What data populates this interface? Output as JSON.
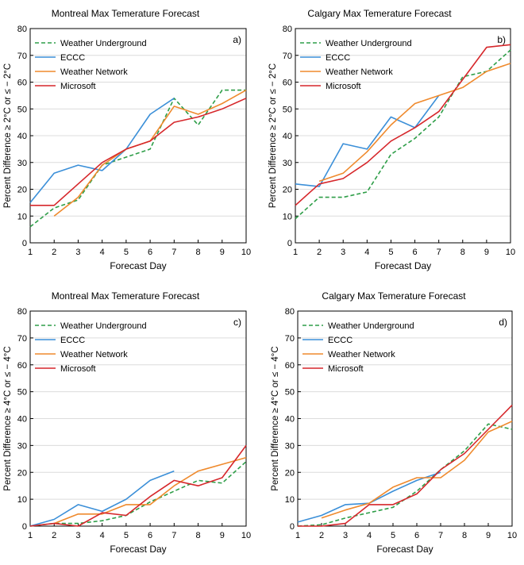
{
  "chart_data": [
    {
      "type": "line",
      "title": "Montreal Max Temerature Forecast",
      "panel_label": "a)",
      "xlabel": "Forecast Day",
      "ylabel": "Percent Difference  ≥ 2°C  or ≤ − 2°C",
      "xlim": [
        1,
        10
      ],
      "ylim": [
        0,
        80
      ],
      "xticks": [
        1,
        2,
        3,
        4,
        5,
        6,
        7,
        8,
        9,
        10
      ],
      "yticks": [
        0,
        10,
        20,
        30,
        40,
        50,
        60,
        70,
        80
      ],
      "grid": true,
      "legend_position": "top-left",
      "series": [
        {
          "name": "Weather Underground",
          "color": "#2e9e48",
          "dashed": true,
          "x": [
            1,
            2,
            3,
            4,
            5,
            6,
            7,
            8,
            9,
            10
          ],
          "y": [
            6,
            13,
            16,
            29,
            32,
            35,
            54,
            44,
            57,
            57
          ]
        },
        {
          "name": "ECCC",
          "color": "#3b8fd8",
          "dashed": false,
          "x": [
            1,
            2,
            3,
            4,
            5,
            6,
            7
          ],
          "y": [
            15,
            26,
            29,
            27,
            35,
            48,
            54
          ]
        },
        {
          "name": "Weather Network",
          "color": "#ef8a2d",
          "dashed": false,
          "x": [
            2,
            3,
            4,
            5,
            6,
            7,
            8,
            9,
            10
          ],
          "y": [
            10,
            17,
            29,
            35,
            38,
            51,
            48,
            52,
            57
          ]
        },
        {
          "name": "Microsoft",
          "color": "#d6272b",
          "dashed": false,
          "x": [
            1,
            2,
            3,
            4,
            5,
            6,
            7,
            8,
            9,
            10
          ],
          "y": [
            14,
            14,
            22,
            30,
            35,
            38,
            45,
            47,
            50,
            54
          ]
        }
      ]
    },
    {
      "type": "line",
      "title": "Calgary Max Temerature Forecast",
      "panel_label": "b)",
      "xlabel": "Forecast Day",
      "ylabel": "Percent Difference  ≥ 2°C  or ≤ − 2°C",
      "xlim": [
        1,
        10
      ],
      "ylim": [
        0,
        80
      ],
      "xticks": [
        1,
        2,
        3,
        4,
        5,
        6,
        7,
        8,
        9,
        10
      ],
      "yticks": [
        0,
        10,
        20,
        30,
        40,
        50,
        60,
        70,
        80
      ],
      "grid": true,
      "legend_position": "top-left",
      "series": [
        {
          "name": "Weather Underground",
          "color": "#2e9e48",
          "dashed": true,
          "x": [
            1,
            2,
            3,
            4,
            5,
            6,
            7,
            8,
            9,
            10
          ],
          "y": [
            9,
            17,
            17,
            19,
            33,
            39,
            47,
            62,
            64,
            72
          ]
        },
        {
          "name": "ECCC",
          "color": "#3b8fd8",
          "dashed": false,
          "x": [
            1,
            2,
            3,
            4,
            5,
            6,
            7
          ],
          "y": [
            22,
            21,
            37,
            35,
            47,
            43,
            55
          ]
        },
        {
          "name": "Weather Network",
          "color": "#ef8a2d",
          "dashed": false,
          "x": [
            2,
            3,
            4,
            5,
            6,
            7,
            8,
            9,
            10
          ],
          "y": [
            23,
            26,
            34,
            44,
            52,
            55,
            58,
            64,
            67
          ]
        },
        {
          "name": "Microsoft",
          "color": "#d6272b",
          "dashed": false,
          "x": [
            1,
            2,
            3,
            4,
            5,
            6,
            7,
            8,
            9,
            10
          ],
          "y": [
            14,
            22,
            24,
            30,
            38,
            43,
            49,
            61,
            73,
            74
          ]
        }
      ]
    },
    {
      "type": "line",
      "title": "Montreal Max Temerature Forecast",
      "panel_label": "c)",
      "xlabel": "Forecast Day",
      "ylabel": "Percent Difference  ≥ 4°C  or ≤ − 4°C",
      "xlim": [
        1,
        10
      ],
      "ylim": [
        0,
        80
      ],
      "xticks": [
        1,
        2,
        3,
        4,
        5,
        6,
        7,
        8,
        9,
        10
      ],
      "yticks": [
        0,
        10,
        20,
        30,
        40,
        50,
        60,
        70,
        80
      ],
      "grid": true,
      "legend_position": "top-left",
      "series": [
        {
          "name": "Weather Underground",
          "color": "#2e9e48",
          "dashed": true,
          "x": [
            1,
            2,
            3,
            4,
            5,
            6,
            7,
            8,
            9,
            10
          ],
          "y": [
            0,
            1,
            1,
            2,
            4,
            9,
            13,
            17,
            16,
            24
          ]
        },
        {
          "name": "ECCC",
          "color": "#3b8fd8",
          "dashed": false,
          "x": [
            1,
            2,
            3,
            4,
            5,
            6,
            7
          ],
          "y": [
            0,
            2.5,
            8,
            5.5,
            10,
            17,
            20.5
          ]
        },
        {
          "name": "Weather Network",
          "color": "#ef8a2d",
          "dashed": false,
          "x": [
            2,
            3,
            4,
            5,
            6,
            7,
            8,
            9,
            10
          ],
          "y": [
            1,
            4.5,
            4.5,
            8,
            8,
            15,
            20.5,
            23,
            25.5
          ]
        },
        {
          "name": "Microsoft",
          "color": "#d6272b",
          "dashed": false,
          "x": [
            1,
            2,
            3,
            4,
            5,
            6,
            7,
            8,
            9,
            10
          ],
          "y": [
            0,
            1,
            0,
            5,
            4,
            11,
            17,
            15,
            18,
            30
          ]
        }
      ]
    },
    {
      "type": "line",
      "title": "Calgary Max Temerature Forecast",
      "panel_label": "d)",
      "xlabel": "Forecast Day",
      "ylabel": "Percent Difference  ≥ 4°C  or ≤ − 4°C",
      "xlim": [
        1,
        10
      ],
      "ylim": [
        0,
        80
      ],
      "xticks": [
        1,
        2,
        3,
        4,
        5,
        6,
        7,
        8,
        9,
        10
      ],
      "yticks": [
        0,
        10,
        20,
        30,
        40,
        50,
        60,
        70,
        80
      ],
      "grid": true,
      "legend_position": "top-left",
      "series": [
        {
          "name": "Weather Underground",
          "color": "#2e9e48",
          "dashed": true,
          "x": [
            1,
            2,
            3,
            4,
            5,
            6,
            7,
            8,
            9,
            10
          ],
          "y": [
            0,
            0.5,
            3,
            5,
            7,
            13,
            21,
            28,
            38,
            36
          ]
        },
        {
          "name": "ECCC",
          "color": "#3b8fd8",
          "dashed": false,
          "x": [
            1,
            2,
            3,
            4,
            5,
            6,
            7
          ],
          "y": [
            1.5,
            4,
            8,
            8.5,
            13,
            17,
            20
          ]
        },
        {
          "name": "Weather Network",
          "color": "#ef8a2d",
          "dashed": false,
          "x": [
            2,
            3,
            4,
            5,
            6,
            7,
            8,
            9,
            10
          ],
          "y": [
            3,
            6,
            8.5,
            14.5,
            18,
            18,
            24.5,
            35,
            39
          ]
        },
        {
          "name": "Microsoft",
          "color": "#d6272b",
          "dashed": false,
          "x": [
            1,
            2,
            3,
            4,
            5,
            6,
            7,
            8,
            9,
            10
          ],
          "y": [
            0,
            0,
            1,
            8,
            8,
            12,
            21,
            27,
            36,
            45
          ]
        }
      ]
    }
  ]
}
